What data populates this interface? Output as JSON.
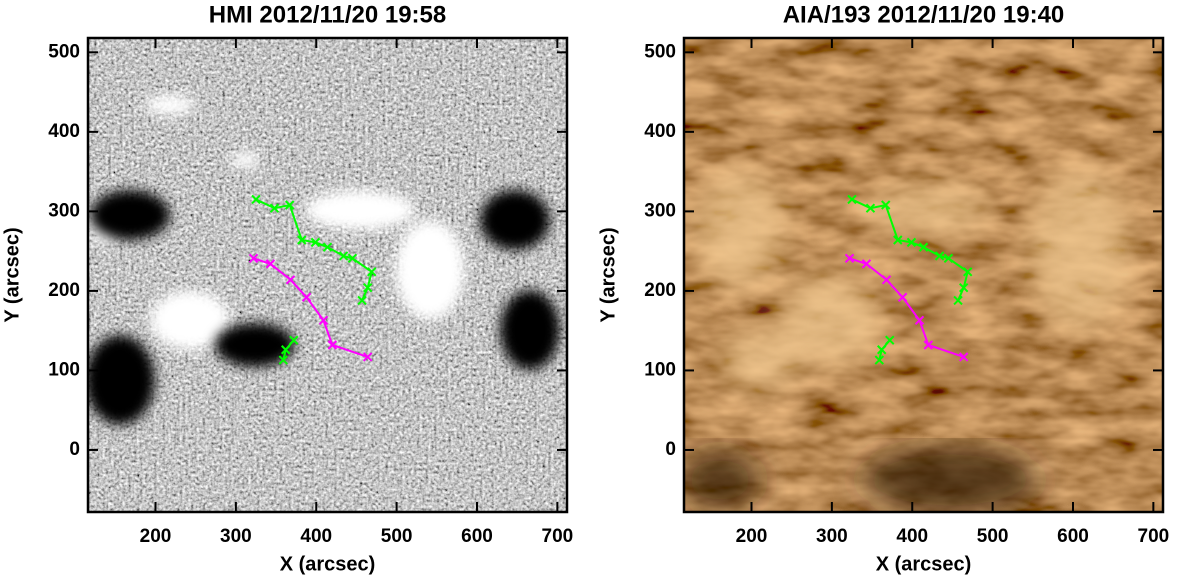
{
  "chart_data": [
    {
      "type": "line",
      "title": "HMI 2012/11/20 19:58",
      "x_label": "X (arcsec)",
      "y_label": "Y (arcsec)",
      "xlim": [
        116,
        712
      ],
      "ylim": [
        -78,
        518
      ],
      "xticks": [
        200,
        300,
        400,
        500,
        600,
        700
      ],
      "yticks": [
        0,
        100,
        200,
        300,
        400,
        500
      ],
      "series": [
        {
          "color": "#ff00ff",
          "x": [
            322,
            343,
            368,
            388,
            409,
            420,
            464
          ],
          "values": [
            241,
            234,
            214,
            192,
            163,
            132,
            117
          ]
        },
        {
          "color": "#00ff00",
          "x": [
            325,
            348,
            367,
            382,
            399,
            414,
            434,
            445,
            469,
            464,
            457
          ],
          "values": [
            315,
            304,
            308,
            264,
            261,
            255,
            244,
            241,
            224,
            204,
            188
          ]
        },
        {
          "color": "#00ff00",
          "x": [
            372,
            362,
            359
          ],
          "values": [
            138,
            126,
            113
          ]
        }
      ]
    },
    {
      "type": "line",
      "title": "AIA/193 2012/11/20 19:40",
      "x_label": "X (arcsec)",
      "y_label": "Y (arcsec)",
      "xlim": [
        116,
        712
      ],
      "ylim": [
        -78,
        518
      ],
      "xticks": [
        200,
        300,
        400,
        500,
        600,
        700
      ],
      "yticks": [
        0,
        100,
        200,
        300,
        400,
        500
      ],
      "series": [
        {
          "color": "#ff00ff",
          "x": [
            322,
            343,
            368,
            388,
            409,
            420,
            464
          ],
          "values": [
            241,
            234,
            214,
            192,
            163,
            132,
            117
          ]
        },
        {
          "color": "#00ff00",
          "x": [
            325,
            348,
            367,
            382,
            399,
            414,
            434,
            445,
            469,
            464,
            457
          ],
          "values": [
            315,
            304,
            308,
            264,
            261,
            255,
            244,
            241,
            224,
            204,
            188
          ]
        },
        {
          "color": "#00ff00",
          "x": [
            372,
            362,
            359
          ],
          "values": [
            138,
            126,
            113
          ]
        }
      ]
    }
  ]
}
